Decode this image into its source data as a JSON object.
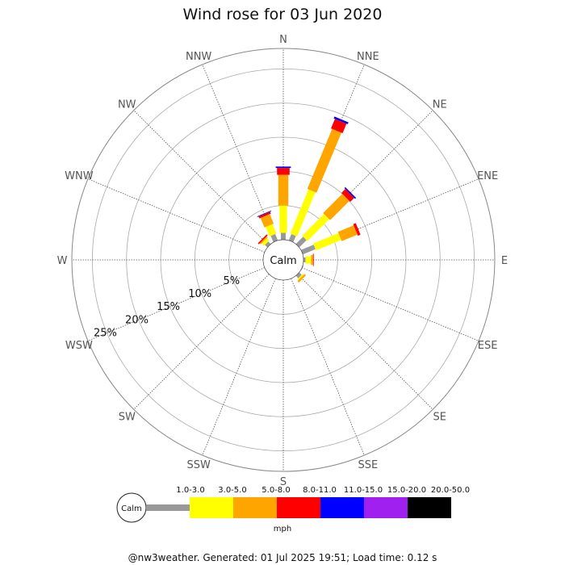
{
  "chart_data": {
    "type": "windrose",
    "title": "Wind rose for 03 Jun 2020",
    "calm_label": "Calm",
    "unit_label": "mph",
    "footer": "@nw3weather. Generated: 01 Jul 2025 19:51; Load time: 0.12 s",
    "ring_labels": [
      "5%",
      "10%",
      "15%",
      "20%",
      "25%"
    ],
    "ring_values": [
      5,
      10,
      15,
      20,
      25
    ],
    "max_percent": 28,
    "directions": [
      "N",
      "NNE",
      "NE",
      "ENE",
      "E",
      "ESE",
      "SE",
      "SSE",
      "S",
      "SSW",
      "SW",
      "WSW",
      "W",
      "WNW",
      "NW",
      "NNW"
    ],
    "speed_bins": [
      {
        "label": "1.0-3.0",
        "color": "#999999"
      },
      {
        "label": "3.0-5.0",
        "color": "#ffff00"
      },
      {
        "label": "5.0-8.0",
        "color": "#ffa500"
      },
      {
        "label": "8.0-11.0",
        "color": "#ff0000"
      },
      {
        "label": "11.0-15.0",
        "color": "#0000ff"
      },
      {
        "label": "15.0-20.0",
        "color": "#a020f0"
      },
      {
        "label": "20.0-50.0",
        "color": "#000000"
      }
    ],
    "series": [
      {
        "direction": "N",
        "values": [
          1.0,
          4.0,
          4.5,
          1.0,
          0.2,
          0,
          0
        ]
      },
      {
        "direction": "NNE",
        "values": [
          1.0,
          7.0,
          9.5,
          1.5,
          0.3,
          0,
          0
        ]
      },
      {
        "direction": "NE",
        "values": [
          1.5,
          4.5,
          4.0,
          0.8,
          0.2,
          0,
          0
        ]
      },
      {
        "direction": "ENE",
        "values": [
          2.0,
          4.0,
          2.5,
          0.4,
          0,
          0,
          0
        ]
      },
      {
        "direction": "E",
        "values": [
          0.3,
          0.8,
          0.3,
          0.1,
          0,
          0,
          0
        ]
      },
      {
        "direction": "ESE",
        "values": [
          0.1,
          0,
          0,
          0,
          0,
          0,
          0
        ]
      },
      {
        "direction": "SE",
        "values": [
          0.5,
          0.2,
          0.3,
          0,
          0,
          0,
          0
        ]
      },
      {
        "direction": "SSE",
        "values": [
          0,
          0,
          0,
          0,
          0,
          0,
          0
        ]
      },
      {
        "direction": "S",
        "values": [
          0,
          0,
          0,
          0,
          0,
          0,
          0
        ]
      },
      {
        "direction": "SSW",
        "values": [
          0,
          0,
          0,
          0,
          0,
          0,
          0
        ]
      },
      {
        "direction": "SW",
        "values": [
          0,
          0,
          0,
          0,
          0,
          0,
          0
        ]
      },
      {
        "direction": "WSW",
        "values": [
          0,
          0,
          0,
          0,
          0,
          0,
          0
        ]
      },
      {
        "direction": "W",
        "values": [
          0,
          0,
          0,
          0,
          0,
          0,
          0
        ]
      },
      {
        "direction": "WNW",
        "values": [
          0,
          0,
          0,
          0,
          0,
          0,
          0
        ]
      },
      {
        "direction": "NW",
        "values": [
          0.5,
          0.5,
          0.2,
          0.2,
          0,
          0,
          0
        ]
      },
      {
        "direction": "NNW",
        "values": [
          1.0,
          1.5,
          1.5,
          0.3,
          0.1,
          0,
          0
        ]
      }
    ]
  }
}
